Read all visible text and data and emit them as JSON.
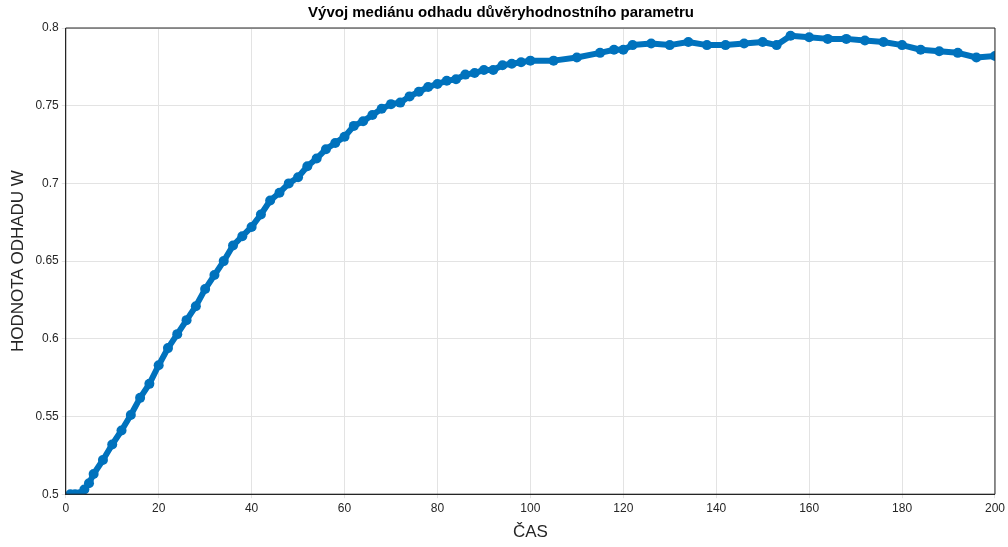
{
  "chart_data": {
    "type": "line",
    "title": "Vývoj mediánu odhadu důvěryhodnostního parametru",
    "xlabel": "ČAS",
    "ylabel": "HODNOTA ODHADU W",
    "x": [
      1,
      2,
      3,
      4,
      5,
      6,
      8,
      10,
      12,
      14,
      16,
      18,
      20,
      22,
      24,
      26,
      28,
      30,
      32,
      34,
      36,
      38,
      40,
      42,
      44,
      46,
      48,
      50,
      52,
      54,
      56,
      58,
      60,
      62,
      64,
      66,
      68,
      70,
      72,
      74,
      76,
      78,
      80,
      82,
      84,
      86,
      88,
      90,
      92,
      94,
      96,
      98,
      100,
      105,
      110,
      115,
      118,
      120,
      122,
      126,
      130,
      134,
      138,
      142,
      146,
      150,
      153,
      156,
      160,
      164,
      168,
      172,
      176,
      180,
      184,
      188,
      192,
      196,
      200
    ],
    "series": [
      {
        "color": "#0072bd",
        "values": [
          0.5,
          0.5,
          0.5,
          0.503,
          0.507,
          0.513,
          0.522,
          0.532,
          0.541,
          0.551,
          0.562,
          0.571,
          0.583,
          0.594,
          0.603,
          0.612,
          0.621,
          0.632,
          0.641,
          0.65,
          0.66,
          0.666,
          0.672,
          0.68,
          0.689,
          0.694,
          0.7,
          0.704,
          0.711,
          0.716,
          0.722,
          0.726,
          0.73,
          0.737,
          0.74,
          0.744,
          0.748,
          0.751,
          0.752,
          0.756,
          0.759,
          0.762,
          0.764,
          0.766,
          0.767,
          0.77,
          0.771,
          0.773,
          0.773,
          0.776,
          0.777,
          0.778,
          0.779,
          0.779,
          0.781,
          0.784,
          0.786,
          0.786,
          0.789,
          0.79,
          0.789,
          0.791,
          0.789,
          0.789,
          0.79,
          0.791,
          0.789,
          0.795,
          0.794,
          0.793,
          0.793,
          0.792,
          0.791,
          0.789,
          0.786,
          0.785,
          0.784,
          0.781,
          0.782
        ]
      }
    ],
    "xlim": [
      0,
      200
    ],
    "xticks": [
      0,
      20,
      40,
      60,
      80,
      100,
      120,
      140,
      160,
      180,
      200
    ],
    "ylim": [
      0.5,
      0.8
    ],
    "yticks": [
      0.5,
      0.55,
      0.6,
      0.65,
      0.7,
      0.75,
      0.8
    ],
    "grid": true,
    "marker": "circle",
    "line_style": "solid"
  }
}
